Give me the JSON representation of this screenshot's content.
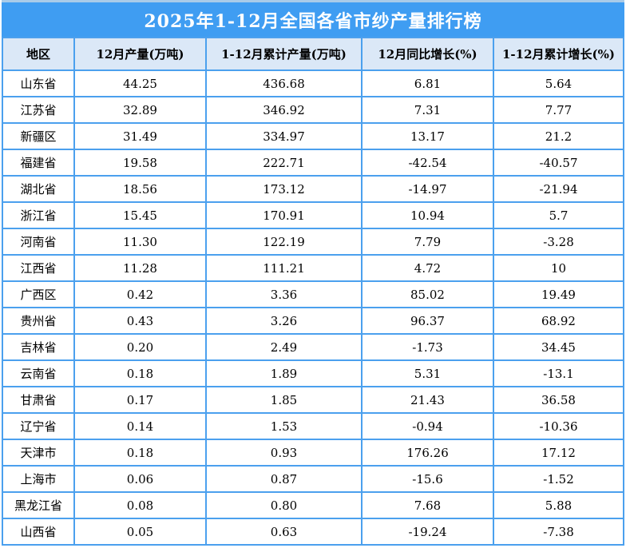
{
  "title": "2025年1-12月全国各省市纱产量排行榜",
  "colors": {
    "title_bg": "#3f9df2",
    "title_text": "#ffffff",
    "header_bg": "#dbe8f7",
    "border": "#4ba0ee",
    "top_strip": "#a9cbe9",
    "body_text": "#000000",
    "row_bg": "#ffffff"
  },
  "chart_data": {
    "type": "table",
    "title": "2025年1-12月全国各省市纱产量排行榜",
    "columns": [
      "地区",
      "12月产量(万吨)",
      "1-12月累计产量(万吨)",
      "12月同比增长(%)",
      "1-12月累计增长(%)"
    ],
    "rows": [
      [
        "山东省",
        "44.25",
        "436.68",
        "6.81",
        "5.64"
      ],
      [
        "江苏省",
        "32.89",
        "346.92",
        "7.31",
        "7.77"
      ],
      [
        "新疆区",
        "31.49",
        "334.97",
        "13.17",
        "21.2"
      ],
      [
        "福建省",
        "19.58",
        "222.71",
        "-42.54",
        "-40.57"
      ],
      [
        "湖北省",
        "18.56",
        "173.12",
        "-14.97",
        "-21.94"
      ],
      [
        "浙江省",
        "15.45",
        "170.91",
        "10.94",
        "5.7"
      ],
      [
        "河南省",
        "11.30",
        "122.19",
        "7.79",
        "-3.28"
      ],
      [
        "江西省",
        "11.28",
        "111.21",
        "4.72",
        "10"
      ],
      [
        "广西区",
        "0.42",
        "3.36",
        "85.02",
        "19.49"
      ],
      [
        "贵州省",
        "0.43",
        "3.26",
        "96.37",
        "68.92"
      ],
      [
        "吉林省",
        "0.20",
        "2.49",
        "-1.73",
        "34.45"
      ],
      [
        "云南省",
        "0.18",
        "1.89",
        "5.31",
        "-13.1"
      ],
      [
        "甘肃省",
        "0.17",
        "1.85",
        "21.43",
        "36.58"
      ],
      [
        "辽宁省",
        "0.14",
        "1.53",
        "-0.94",
        "-10.36"
      ],
      [
        "天津市",
        "0.18",
        "0.93",
        "176.26",
        "17.12"
      ],
      [
        "上海市",
        "0.06",
        "0.87",
        "-15.6",
        "-1.52"
      ],
      [
        "黑龙江省",
        "0.08",
        "0.80",
        "7.68",
        "5.88"
      ],
      [
        "山西省",
        "0.05",
        "0.63",
        "-19.24",
        "-7.38"
      ]
    ]
  }
}
